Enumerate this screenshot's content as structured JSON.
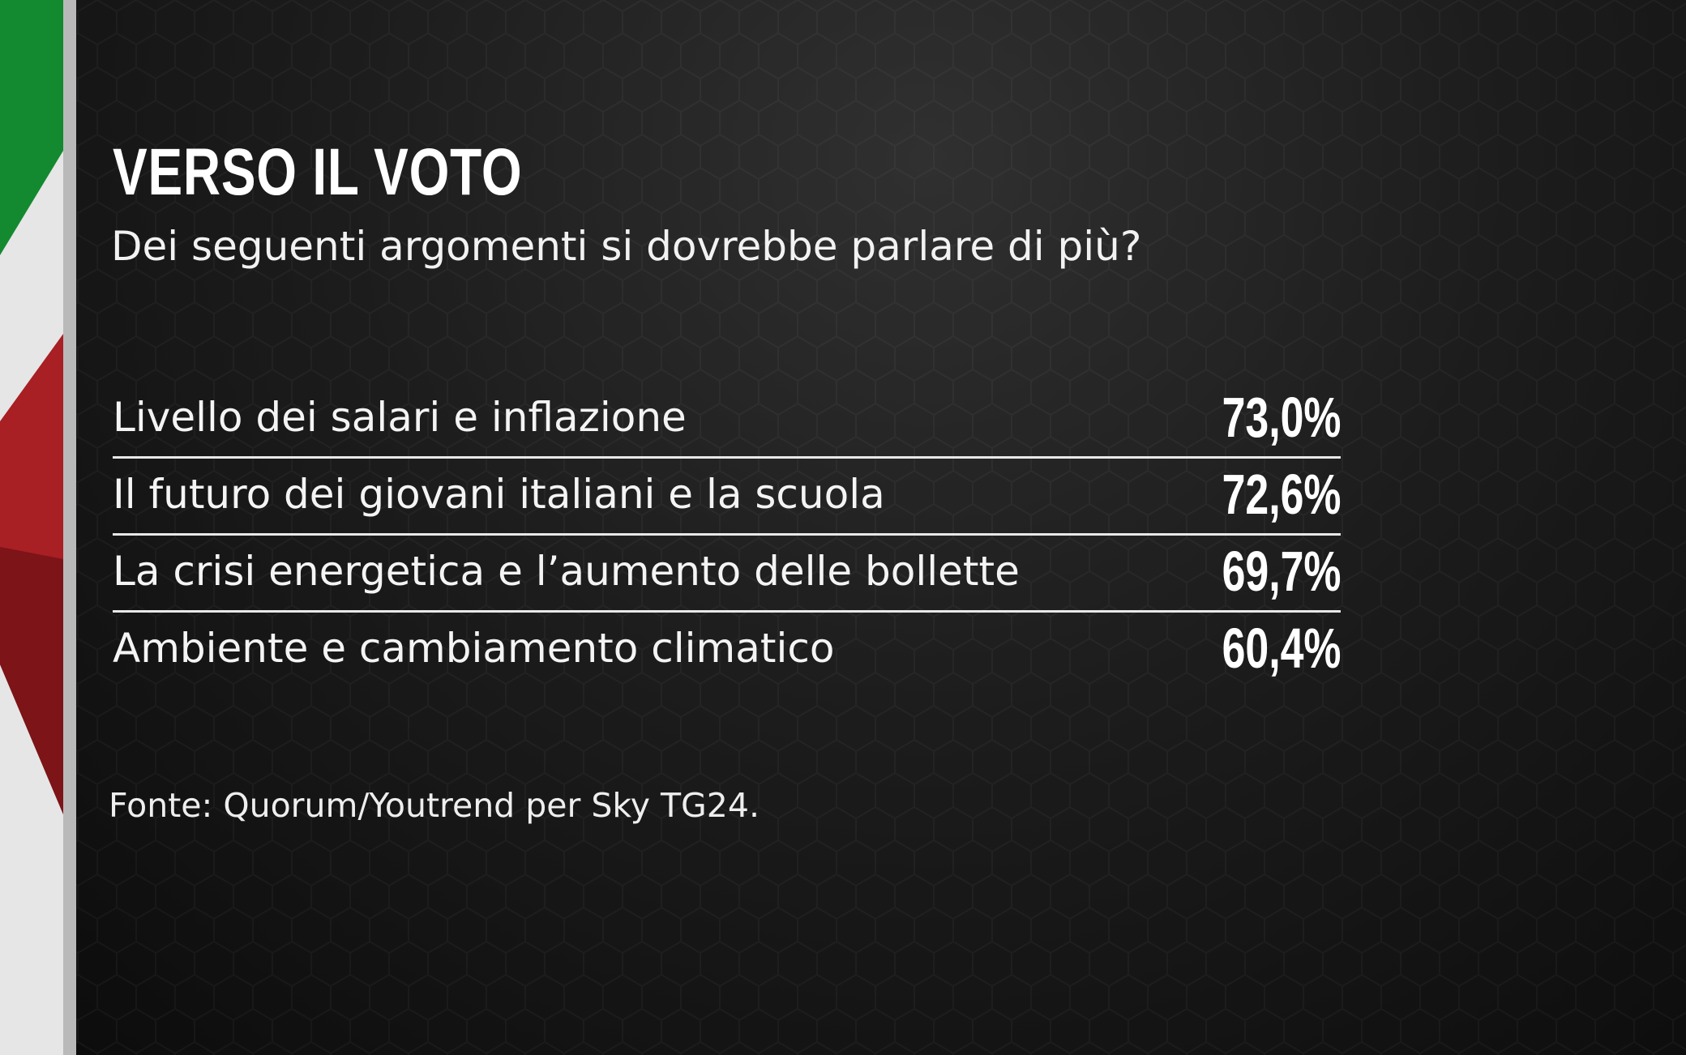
{
  "header": {
    "title": "VERSO IL VOTO",
    "subtitle": "Dei seguenti argomenti si dovrebbe parlare di più?"
  },
  "table": {
    "rows": [
      [
        "Livello dei salari e inflazione",
        "73,0%"
      ],
      [
        "Il futuro dei giovani italiani e la scuola",
        "72,6%"
      ],
      [
        "La crisi energetica e l’aumento delle bollette",
        "69,7%"
      ],
      [
        "Ambiente e cambiamento climatico",
        "60,4%"
      ]
    ]
  },
  "footer": {
    "source": "Fonte: Quorum/Youtrend per Sky TG24."
  }
}
